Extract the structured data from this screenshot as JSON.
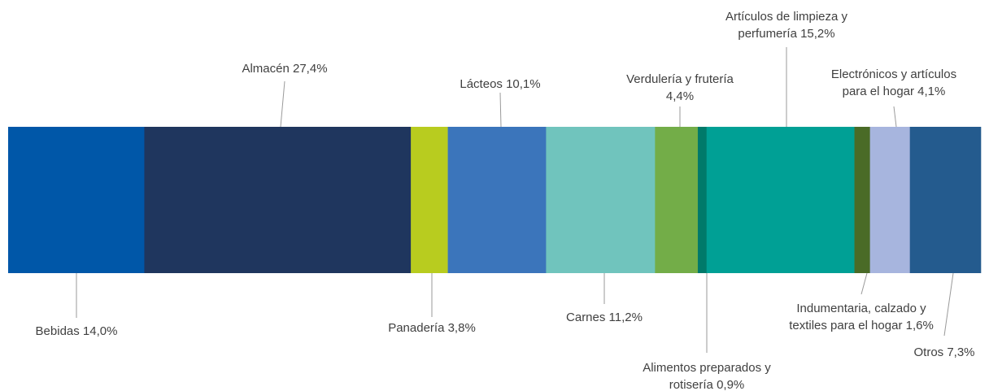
{
  "chart_data": {
    "type": "bar",
    "orientation": "horizontal-stacked",
    "title": "",
    "xlabel": "",
    "ylabel": "",
    "unit": "%",
    "segments": [
      {
        "name": "Bebidas",
        "value": 14.0,
        "label": [
          "Bebidas 14,0%"
        ],
        "color": "#0057a8",
        "label_side": "below"
      },
      {
        "name": "Almacén",
        "value": 27.4,
        "label": [
          "Almacén 27,4%"
        ],
        "color": "#1f365e",
        "label_side": "above"
      },
      {
        "name": "Panadería",
        "value": 3.8,
        "label": [
          "Panadería 3,8%"
        ],
        "color": "#b8cc1f",
        "label_side": "below"
      },
      {
        "name": "Lácteos",
        "value": 10.1,
        "label": [
          "Lácteos 10,1%"
        ],
        "color": "#3b75bb",
        "label_side": "above"
      },
      {
        "name": "Carnes",
        "value": 11.2,
        "label": [
          "Carnes 11,2%"
        ],
        "color": "#70c4bd",
        "label_side": "below"
      },
      {
        "name": "Verdulería y frutería",
        "value": 4.4,
        "label": [
          "Verdulería y frutería",
          "4,4%"
        ],
        "color": "#73ad48",
        "label_side": "above"
      },
      {
        "name": "Alimentos preparados y rotisería",
        "value": 0.9,
        "label": [
          "Alimentos preparados y",
          "rotisería 0,9%"
        ],
        "color": "#007a6a",
        "label_side": "below"
      },
      {
        "name": "Artículos de limpieza y perfumería",
        "value": 15.2,
        "label": [
          "Artículos de limpieza y",
          "perfumería 15,2%"
        ],
        "color": "#00a095",
        "label_side": "above"
      },
      {
        "name": "Indumentaria, calzado y textiles para el hogar",
        "value": 1.6,
        "label": [
          "Indumentaria, calzado y",
          "textiles para el hogar 1,6%"
        ],
        "color": "#4a6b27",
        "label_side": "below"
      },
      {
        "name": "Electrónicos y artículos para el hogar",
        "value": 4.1,
        "label": [
          "Electrónicos y artículos",
          "para el hogar 4,1%"
        ],
        "color": "#a7b5de",
        "label_side": "above"
      },
      {
        "name": "Otros",
        "value": 7.3,
        "label": [
          "Otros 7,3%"
        ],
        "color": "#245b8e",
        "label_side": "below"
      }
    ]
  }
}
